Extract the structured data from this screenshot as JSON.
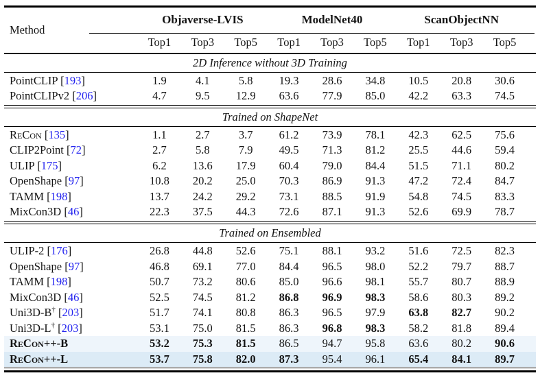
{
  "colors": {
    "citation": "#2222ef",
    "highlight_b": "#eef5fb",
    "highlight_l": "#dcebf6"
  },
  "table": {
    "method_header": "Method",
    "groups": [
      {
        "label": "Objaverse-LVIS"
      },
      {
        "label": "ModelNet40"
      },
      {
        "label": "ScanObjectNN"
      }
    ],
    "subheaders": [
      "Top1",
      "Top3",
      "Top5",
      "Top1",
      "Top3",
      "Top5",
      "Top1",
      "Top3",
      "Top5"
    ],
    "sections": [
      {
        "title": "2D Inference without 3D Training",
        "rows": [
          {
            "name": "PointCLIP",
            "cite": "193",
            "values": [
              "1.9",
              "4.1",
              "5.8",
              "19.3",
              "28.6",
              "34.8",
              "10.5",
              "20.8",
              "30.6"
            ]
          },
          {
            "name": "PointCLIPv2",
            "cite": "206",
            "values": [
              "4.7",
              "9.5",
              "12.9",
              "63.6",
              "77.9",
              "85.0",
              "42.2",
              "63.3",
              "74.5"
            ]
          }
        ]
      },
      {
        "title": "Trained on ShapeNet",
        "rows": [
          {
            "name": "ReCon",
            "sc": true,
            "cite": "135",
            "values": [
              "1.1",
              "2.7",
              "3.7",
              "61.2",
              "73.9",
              "78.1",
              "42.3",
              "62.5",
              "75.6"
            ]
          },
          {
            "name": "CLIP2Point",
            "cite": "72",
            "values": [
              "2.7",
              "5.8",
              "7.9",
              "49.5",
              "71.3",
              "81.2",
              "25.5",
              "44.6",
              "59.4"
            ]
          },
          {
            "name": "ULIP",
            "cite": "175",
            "values": [
              "6.2",
              "13.6",
              "17.9",
              "60.4",
              "79.0",
              "84.4",
              "51.5",
              "71.1",
              "80.2"
            ]
          },
          {
            "name": "OpenShape",
            "cite": "97",
            "values": [
              "10.8",
              "20.2",
              "25.0",
              "70.3",
              "86.9",
              "91.3",
              "47.2",
              "72.4",
              "84.7"
            ]
          },
          {
            "name": "TAMM",
            "cite": "198",
            "values": [
              "13.7",
              "24.2",
              "29.2",
              "73.1",
              "88.5",
              "91.9",
              "54.8",
              "74.5",
              "83.3"
            ]
          },
          {
            "name": "MixCon3D",
            "cite": "46",
            "values": [
              "22.3",
              "37.5",
              "44.3",
              "72.6",
              "87.1",
              "91.3",
              "52.6",
              "69.9",
              "78.7"
            ]
          }
        ]
      },
      {
        "title": "Trained on Ensembled",
        "rows": [
          {
            "name": "ULIP-2",
            "cite": "176",
            "values": [
              "26.8",
              "44.8",
              "52.6",
              "75.1",
              "88.1",
              "93.2",
              "51.6",
              "72.5",
              "82.3"
            ]
          },
          {
            "name": "OpenShape",
            "cite": "97",
            "values": [
              "46.8",
              "69.1",
              "77.0",
              "84.4",
              "96.5",
              "98.0",
              "52.2",
              "79.7",
              "88.7"
            ]
          },
          {
            "name": "TAMM",
            "cite": "198",
            "values": [
              "50.7",
              "73.2",
              "80.6",
              "85.0",
              "96.6",
              "98.1",
              "55.7",
              "80.7",
              "88.9"
            ]
          },
          {
            "name": "MixCon3D",
            "cite": "46",
            "values": [
              "52.5",
              "74.5",
              "81.2",
              "86.8",
              "96.9",
              "98.3",
              "58.6",
              "80.3",
              "89.2"
            ],
            "bold_idx": [
              3,
              4,
              5
            ]
          },
          {
            "name": "Uni3D-B",
            "sup": "†",
            "cite": "203",
            "values": [
              "51.7",
              "74.1",
              "80.8",
              "86.3",
              "96.5",
              "97.9",
              "63.8",
              "82.7",
              "90.2"
            ],
            "bold_idx": [
              6,
              7
            ]
          },
          {
            "name": "Uni3D-L",
            "sup": "†",
            "cite": "203",
            "values": [
              "53.1",
              "75.0",
              "81.5",
              "86.3",
              "96.8",
              "98.3",
              "58.2",
              "81.8",
              "89.4"
            ],
            "bold_idx": [
              4,
              5
            ]
          },
          {
            "name": "ReCon++-B",
            "sc": true,
            "bold": true,
            "highlight": "highlight_b",
            "values": [
              "53.2",
              "75.3",
              "81.5",
              "86.5",
              "94.7",
              "95.8",
              "63.6",
              "80.2",
              "90.6"
            ],
            "bold_idx": [
              0,
              1,
              2,
              8
            ]
          },
          {
            "name": "ReCon++-L",
            "sc": true,
            "bold": true,
            "highlight": "highlight_l",
            "values": [
              "53.7",
              "75.8",
              "82.0",
              "87.3",
              "95.4",
              "96.1",
              "65.4",
              "84.1",
              "89.7"
            ],
            "bold_idx": [
              0,
              1,
              2,
              3,
              6,
              7,
              8
            ]
          }
        ]
      }
    ]
  }
}
